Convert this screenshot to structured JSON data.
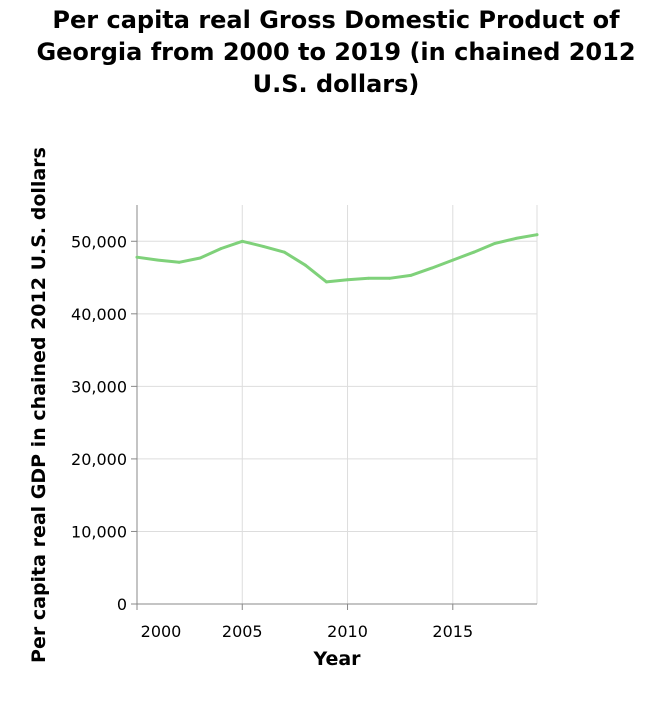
{
  "chart_data": {
    "type": "line",
    "title_lines": [
      "Per capita real Gross Domestic Product of",
      "Georgia from 2000 to 2019 (in chained 2012",
      "U.S. dollars)"
    ],
    "xlabel": "Year",
    "ylabel": "Per capita real GDP in chained 2012 U.S. dollars",
    "xlim": [
      2000,
      2019
    ],
    "ylim": [
      0,
      55000
    ],
    "x_ticks": [
      2000,
      2005,
      2010,
      2015
    ],
    "x_tick_labels": [
      "2000",
      "2005",
      "2010",
      "2015"
    ],
    "y_ticks": [
      0,
      10000,
      20000,
      30000,
      40000,
      50000
    ],
    "y_tick_labels": [
      "0",
      "10,000",
      "20,000",
      "30,000",
      "40,000",
      "50,000"
    ],
    "grid": true,
    "line_color": "#7fd17a",
    "series": [
      {
        "x": [
          2000,
          2001,
          2002,
          2003,
          2004,
          2005,
          2006,
          2007,
          2008,
          2009,
          2010,
          2011,
          2012,
          2013,
          2014,
          2015,
          2016,
          2017,
          2018,
          2019
        ],
        "values": [
          47800,
          47400,
          47100,
          47700,
          49000,
          50000,
          49300,
          48500,
          46700,
          44400,
          44700,
          44900,
          44900,
          45300,
          46300,
          47400,
          48500,
          49700,
          50400,
          50900
        ]
      }
    ]
  }
}
